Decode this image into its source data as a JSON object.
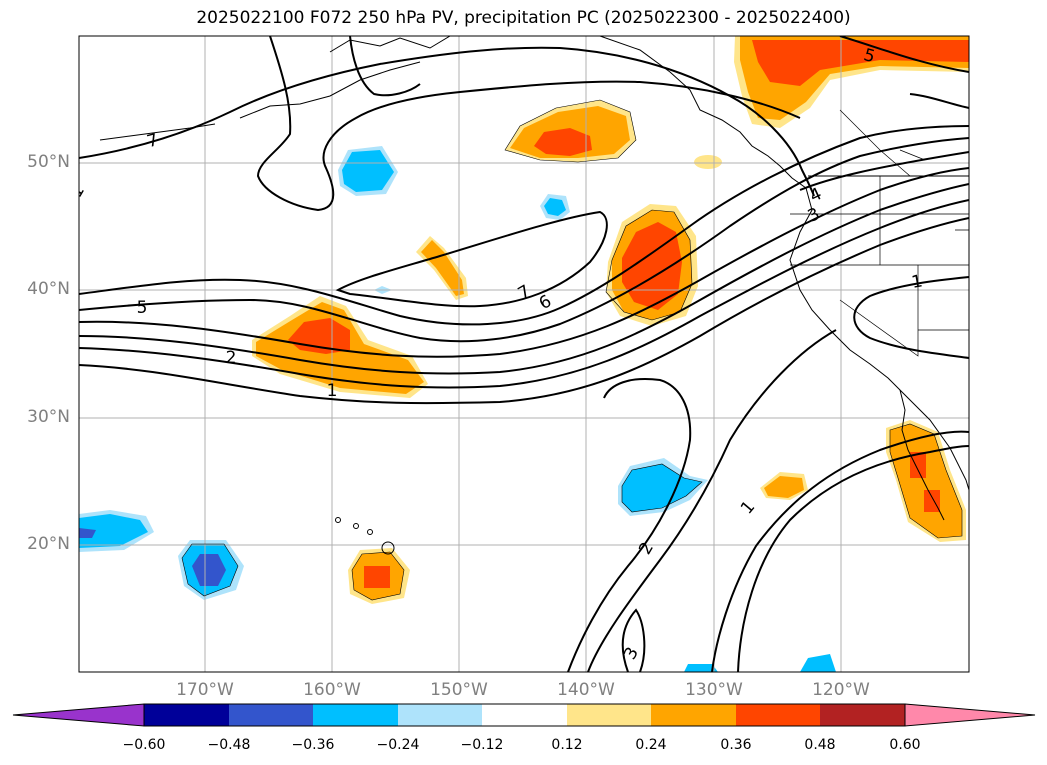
{
  "title": "2025022100 F072 250 hPa PV, precipitation PC (2025022300 - 2025022400)",
  "longitude_labels": [
    "170°W",
    "160°W",
    "150°W",
    "140°W",
    "130°W",
    "120°W"
  ],
  "latitude_labels": [
    "50°N",
    "40°N",
    "30°N",
    "20°N"
  ],
  "pv_contour_labels": [
    "7",
    "5",
    "2",
    "1",
    "7",
    "6",
    "3",
    "4",
    "1",
    "2",
    "1",
    "3",
    "5",
    "1"
  ],
  "colorbar": {
    "tick_labels": [
      "−0.60",
      "−0.48",
      "−0.36",
      "−0.24",
      "−0.12",
      "0.12",
      "0.24",
      "0.36",
      "0.48",
      "0.60"
    ],
    "colors": [
      "#9933cc",
      "#000099",
      "#3355cc",
      "#00bfff",
      "#aee3fb",
      "#ffffff",
      "#ffe58a",
      "#ffa500",
      "#ff4500",
      "#b22222",
      "#ff88aa"
    ]
  }
}
